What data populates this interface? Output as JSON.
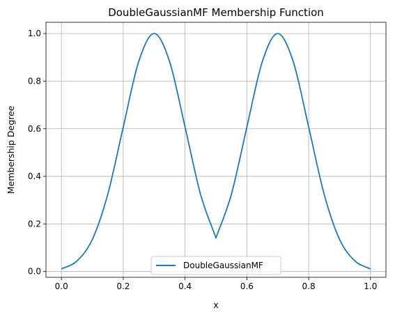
{
  "chart_data": {
    "type": "line",
    "title": "DoubleGaussianMF Membership Function",
    "xlabel": "x",
    "ylabel": "Membership Degree",
    "xlim": [
      -0.05,
      1.05
    ],
    "ylim": [
      -0.0243,
      1.0473
    ],
    "xticks": [
      0.0,
      0.2,
      0.4,
      0.6,
      0.8,
      1.0
    ],
    "xtick_labels": [
      "0.0",
      "0.2",
      "0.4",
      "0.6",
      "0.8",
      "1.0"
    ],
    "yticks": [
      0.0,
      0.2,
      0.4,
      0.6,
      0.8,
      1.0
    ],
    "ytick_labels": [
      "0.0",
      "0.2",
      "0.4",
      "0.6",
      "0.8",
      "1.0"
    ],
    "grid": true,
    "legend_position": "lower center",
    "series": [
      {
        "name": "DoubleGaussianMF",
        "color": "#1f77b4",
        "x": [
          0.0,
          0.05,
          0.1,
          0.15,
          0.2,
          0.25,
          0.3,
          0.35,
          0.4,
          0.45,
          0.5,
          0.55,
          0.6,
          0.65,
          0.7,
          0.75,
          0.8,
          0.85,
          0.9,
          0.95,
          1.0
        ],
        "y": [
          0.011,
          0.044,
          0.135,
          0.325,
          0.607,
          0.882,
          1.0,
          0.882,
          0.607,
          0.325,
          0.141,
          0.325,
          0.607,
          0.882,
          1.0,
          0.882,
          0.607,
          0.325,
          0.135,
          0.044,
          0.011
        ]
      }
    ]
  }
}
